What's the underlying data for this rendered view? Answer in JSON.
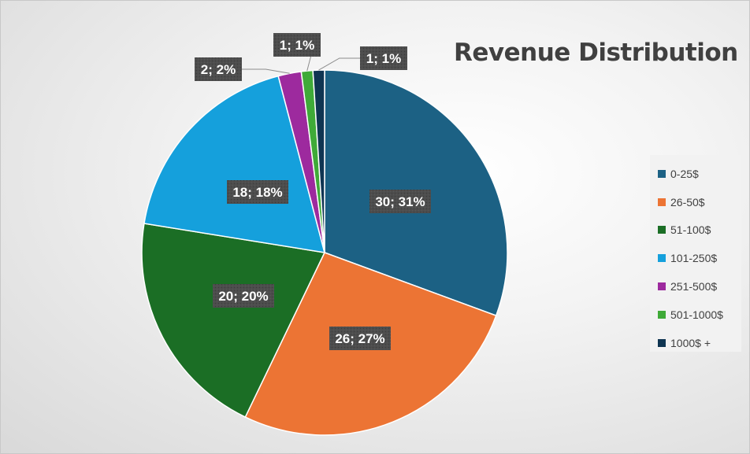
{
  "chart_data": {
    "type": "pie",
    "title": "Revenue Distribution",
    "categories": [
      "0-25$",
      "26-50$",
      "51-100$",
      "101-250$",
      "251-500$",
      "501-1000$",
      "1000$ +"
    ],
    "values": [
      30,
      26,
      20,
      18,
      2,
      1,
      1
    ],
    "data_labels": [
      "30; 31%",
      "26; 27%",
      "20; 20%",
      "18; 18%",
      "2; 2%",
      "1; 1%",
      "1; 1%"
    ],
    "colors": [
      "#1c6184",
      "#ec7434",
      "#1b6e25",
      "#15a0dc",
      "#9d2a9e",
      "#3faa38",
      "#0f3552"
    ],
    "legend_position": "right",
    "start_angle": "top, clockwise"
  }
}
